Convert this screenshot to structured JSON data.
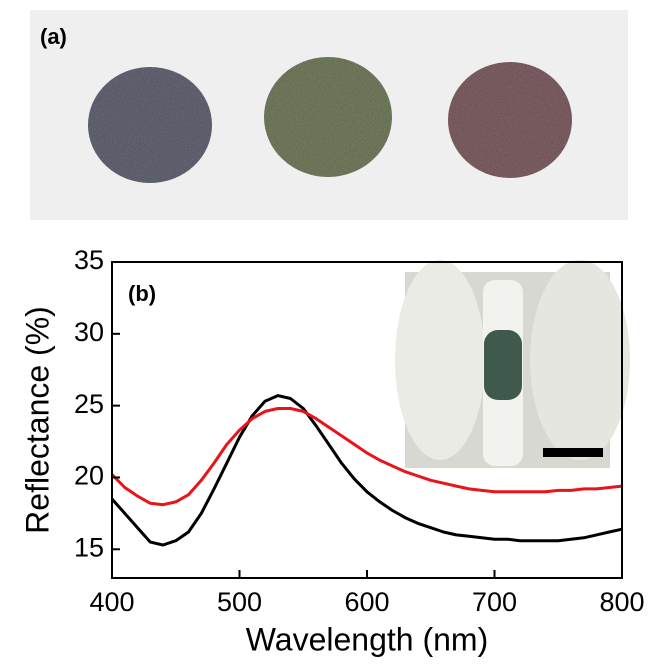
{
  "panel_label": "(a)",
  "chart_data": {
    "type": "line",
    "annotations": [
      "(b)"
    ],
    "xlabel": "Wavelength (nm)",
    "ylabel": "Reflectance (%)",
    "x": [
      400,
      410,
      420,
      430,
      440,
      450,
      460,
      470,
      480,
      490,
      500,
      510,
      520,
      530,
      540,
      550,
      560,
      570,
      580,
      590,
      600,
      610,
      620,
      630,
      640,
      650,
      660,
      670,
      680,
      690,
      700,
      710,
      720,
      730,
      740,
      750,
      760,
      770,
      780,
      790,
      800
    ],
    "series": [
      {
        "color": "#000000",
        "values": [
          18.5,
          17.5,
          16.5,
          15.5,
          15.3,
          15.6,
          16.2,
          17.5,
          19.2,
          21,
          22.8,
          24.3,
          25.3,
          25.7,
          25.5,
          24.8,
          23.6,
          22.3,
          21,
          19.9,
          19,
          18.3,
          17.7,
          17.2,
          16.8,
          16.5,
          16.2,
          16,
          15.9,
          15.8,
          15.7,
          15.7,
          15.6,
          15.6,
          15.6,
          15.6,
          15.7,
          15.8,
          16,
          16.2,
          16.4
        ]
      },
      {
        "color": "#e8141b",
        "values": [
          20.2,
          19.3,
          18.7,
          18.2,
          18.1,
          18.3,
          18.8,
          19.8,
          21,
          22.3,
          23.3,
          24.1,
          24.6,
          24.8,
          24.8,
          24.6,
          24.1,
          23.5,
          22.9,
          22.3,
          21.7,
          21.2,
          20.8,
          20.4,
          20.1,
          19.8,
          19.6,
          19.4,
          19.2,
          19.1,
          19,
          19,
          19,
          19,
          19,
          19.1,
          19.1,
          19.2,
          19.2,
          19.3,
          19.4
        ]
      }
    ],
    "xlim": [
      400,
      800
    ],
    "xticks": [
      400,
      500,
      600,
      700,
      800
    ],
    "ylim": [
      13,
      35
    ],
    "yticks": [
      15,
      20,
      25,
      30,
      35
    ]
  }
}
